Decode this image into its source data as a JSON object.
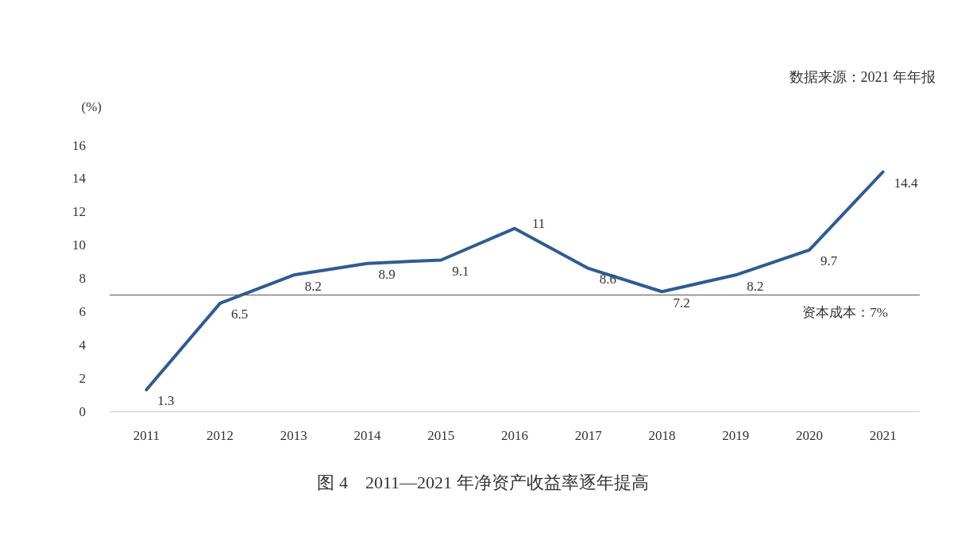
{
  "chart_data": {
    "type": "line",
    "title": "图 4　2011—2021 年净资产收益率逐年提高",
    "ylabel": "(%)",
    "annotations": [
      "数据来源：2021 年年报"
    ],
    "categories": [
      "2011",
      "2012",
      "2013",
      "2014",
      "2015",
      "2016",
      "2017",
      "2018",
      "2019",
      "2020",
      "2021"
    ],
    "series": [
      {
        "color": "#2e5b94",
        "values": [
          1.3,
          6.5,
          8.2,
          8.9,
          9.1,
          11,
          8.6,
          7.2,
          8.2,
          9.7,
          14.4
        ]
      }
    ],
    "ylim": [
      0,
      16
    ],
    "yticks": [
      0,
      2,
      4,
      6,
      8,
      10,
      12,
      14,
      16
    ],
    "ref_lines": [
      {
        "axis": "y",
        "value": 7,
        "label": "资本成本：7%",
        "color": "#555555"
      }
    ],
    "data_labels": true,
    "grid": false,
    "marker": "none",
    "line_style": "solid"
  }
}
